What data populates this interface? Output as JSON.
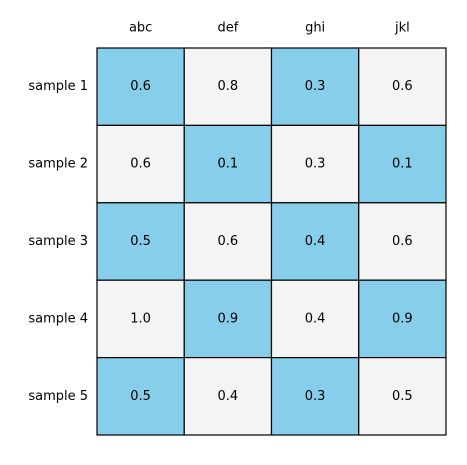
{
  "chart_data": {
    "type": "table",
    "title": "",
    "columns": [
      "abc",
      "def",
      "ghi",
      "jkl"
    ],
    "rows": [
      "sample 1",
      "sample 2",
      "sample 3",
      "sample 4",
      "sample 5"
    ],
    "values": [
      [
        "0.6",
        "0.8",
        "0.3",
        "0.6"
      ],
      [
        "0.6",
        "0.1",
        "0.3",
        "0.1"
      ],
      [
        "0.5",
        "0.6",
        "0.4",
        "0.6"
      ],
      [
        "1.0",
        "0.9",
        "0.4",
        "0.9"
      ],
      [
        "0.5",
        "0.4",
        "0.3",
        "0.5"
      ]
    ],
    "cell_colors": {
      "highlight": "#87ceeb",
      "plain": "#f4f4f4",
      "border": "#000000"
    },
    "highlight_pattern": "checkerboard starting highlighted at top-left"
  }
}
